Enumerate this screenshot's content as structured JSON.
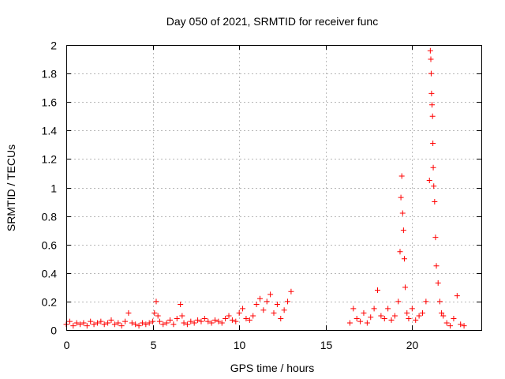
{
  "chart_data": {
    "type": "scatter",
    "title": "Day 050 of 2021, SRMTID for receiver func",
    "xlabel": "GPS time / hours",
    "ylabel": "SRMTID / TECUs",
    "xlim": [
      0,
      24
    ],
    "ylim": [
      0,
      2
    ],
    "xticks": [
      0,
      5,
      10,
      15,
      20
    ],
    "xtick_labels": [
      "0",
      "5",
      "10",
      "15",
      "20"
    ],
    "yticks": [
      0,
      0.2,
      0.4,
      0.6,
      0.8,
      1,
      1.2,
      1.4,
      1.6,
      1.8,
      2
    ],
    "ytick_labels": [
      "0",
      "0.2",
      "0.4",
      "0.6",
      "0.8",
      "1",
      "1.2",
      "1.4",
      "1.6",
      "1.8",
      "2"
    ],
    "grid": true,
    "marker": "+",
    "color": "#ff0000",
    "series": [
      {
        "name": "SRMTID",
        "x": [
          0.0,
          0.2,
          0.4,
          0.6,
          0.8,
          1.0,
          1.2,
          1.4,
          1.6,
          1.8,
          2.0,
          2.2,
          2.4,
          2.6,
          2.8,
          3.0,
          3.2,
          3.4,
          3.6,
          3.8,
          4.0,
          4.2,
          4.4,
          4.6,
          4.8,
          5.0,
          5.1,
          5.2,
          5.3,
          5.4,
          5.6,
          5.8,
          6.0,
          6.2,
          6.4,
          6.6,
          6.7,
          6.8,
          7.0,
          7.2,
          7.4,
          7.6,
          7.8,
          8.0,
          8.2,
          8.4,
          8.6,
          8.8,
          9.0,
          9.2,
          9.4,
          9.6,
          9.8,
          10.0,
          10.2,
          10.4,
          10.6,
          10.8,
          11.0,
          11.2,
          11.4,
          11.6,
          11.8,
          12.0,
          12.2,
          12.4,
          12.6,
          12.8,
          13.0,
          16.4,
          16.6,
          16.8,
          17.0,
          17.2,
          17.4,
          17.6,
          17.8,
          18.0,
          18.2,
          18.4,
          18.6,
          18.8,
          19.0,
          19.2,
          19.3,
          19.35,
          19.4,
          19.45,
          19.5,
          19.55,
          19.6,
          19.7,
          19.8,
          20.0,
          20.2,
          20.4,
          20.6,
          20.8,
          21.0,
          21.05,
          21.08,
          21.1,
          21.12,
          21.15,
          21.18,
          21.2,
          21.22,
          21.25,
          21.3,
          21.35,
          21.4,
          21.5,
          21.6,
          21.7,
          21.8,
          22.0,
          22.2,
          22.4,
          22.6,
          22.8,
          23.0
        ],
        "y": [
          0.04,
          0.06,
          0.03,
          0.05,
          0.04,
          0.05,
          0.03,
          0.06,
          0.04,
          0.05,
          0.06,
          0.04,
          0.05,
          0.07,
          0.04,
          0.05,
          0.03,
          0.06,
          0.12,
          0.05,
          0.04,
          0.03,
          0.05,
          0.04,
          0.05,
          0.06,
          0.12,
          0.2,
          0.1,
          0.06,
          0.04,
          0.05,
          0.07,
          0.04,
          0.08,
          0.18,
          0.1,
          0.05,
          0.04,
          0.06,
          0.05,
          0.07,
          0.06,
          0.08,
          0.06,
          0.05,
          0.07,
          0.06,
          0.05,
          0.08,
          0.1,
          0.07,
          0.06,
          0.12,
          0.15,
          0.08,
          0.07,
          0.1,
          0.18,
          0.22,
          0.14,
          0.2,
          0.25,
          0.12,
          0.18,
          0.08,
          0.14,
          0.2,
          0.27,
          0.05,
          0.15,
          0.08,
          0.06,
          0.12,
          0.05,
          0.09,
          0.15,
          0.28,
          0.1,
          0.08,
          0.15,
          0.07,
          0.1,
          0.2,
          0.55,
          0.93,
          1.08,
          0.82,
          0.7,
          0.5,
          0.3,
          0.12,
          0.08,
          0.15,
          0.07,
          0.1,
          0.12,
          0.2,
          1.05,
          1.96,
          1.9,
          1.8,
          1.66,
          1.58,
          1.5,
          1.31,
          1.14,
          1.01,
          0.9,
          0.65,
          0.45,
          0.33,
          0.2,
          0.12,
          0.1,
          0.05,
          0.03,
          0.08,
          0.24,
          0.04,
          0.03
        ]
      }
    ]
  }
}
